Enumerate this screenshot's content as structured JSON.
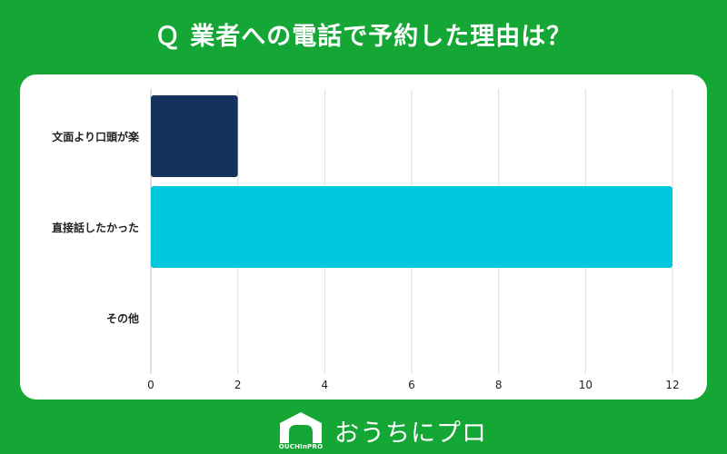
{
  "title": "Ｑ 業者への電話で予約した理由は？",
  "chart_data": {
    "type": "bar",
    "orientation": "horizontal",
    "categories": [
      "文面より口頭が楽",
      "直接話したかった",
      "その他"
    ],
    "values": [
      2,
      12,
      0
    ],
    "colors": [
      "#15325f",
      "#00c8dd",
      "#00c8dd"
    ],
    "xlim": [
      0,
      12
    ],
    "xticks": [
      0,
      2,
      4,
      6,
      8,
      10,
      12
    ],
    "xlabel": "",
    "ylabel": "",
    "grid": true
  },
  "logo": {
    "name": "おうちにプロ",
    "small": "OUCHInPRO"
  }
}
